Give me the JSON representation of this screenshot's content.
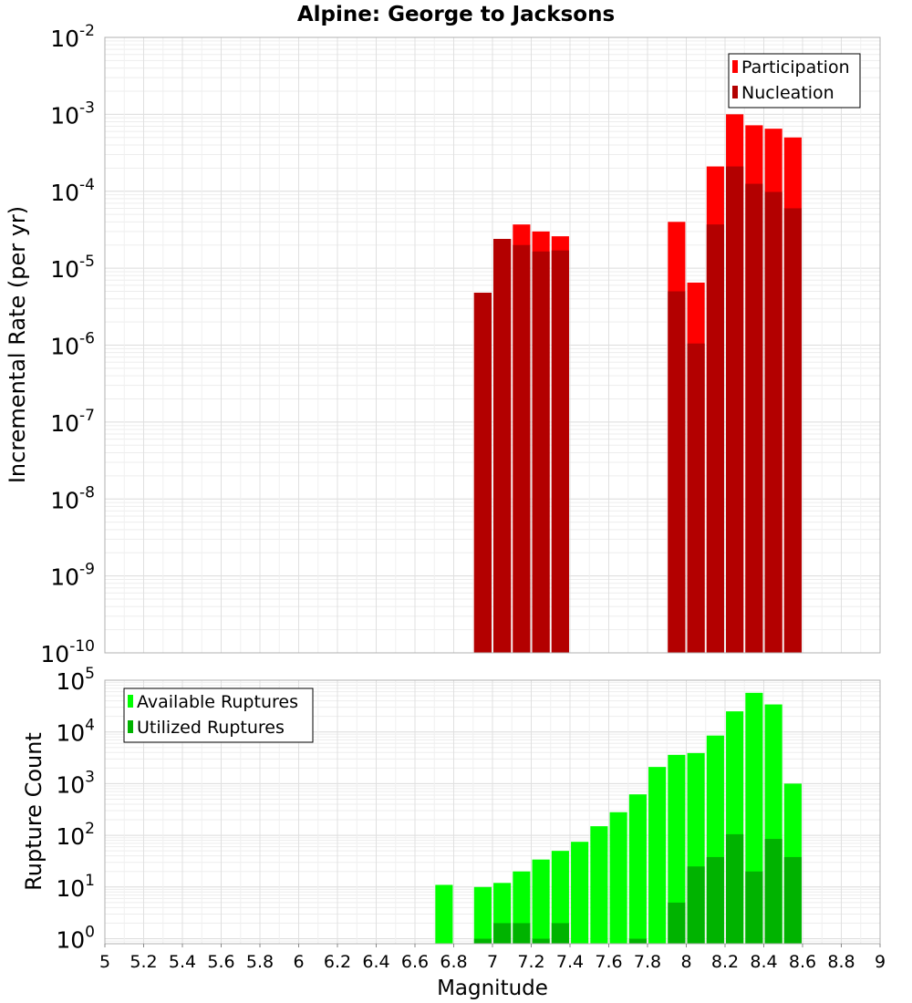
{
  "chart_data": [
    {
      "type": "bar",
      "title": "Alpine: George to Jacksons",
      "xlabel": "Magnitude",
      "ylabel": "Incremental Rate (per yr)",
      "yscale": "log",
      "xlim": [
        5,
        9
      ],
      "ylim": [
        1e-10,
        0.01
      ],
      "ytick_exponents": [
        -10,
        -9,
        -8,
        -7,
        -6,
        -5,
        -4,
        -3,
        -2
      ],
      "grid": true,
      "legend_position": "top-right",
      "bar_width": 0.09,
      "series": [
        {
          "name": "Participation",
          "color": "#ff0000",
          "x": [
            6.95,
            7.05,
            7.15,
            7.25,
            7.35,
            7.95,
            8.05,
            8.15,
            8.25,
            8.35,
            8.45,
            8.55
          ],
          "values": [
            4.8e-06,
            2.4e-05,
            3.7e-05,
            3e-05,
            2.6e-05,
            4e-05,
            6.5e-06,
            0.00021,
            0.001,
            0.00072,
            0.00065,
            0.0005
          ]
        },
        {
          "name": "Nucleation",
          "color": "#b30000",
          "x": [
            6.95,
            7.05,
            7.15,
            7.25,
            7.35,
            7.95,
            8.05,
            8.15,
            8.25,
            8.35,
            8.45,
            8.55
          ],
          "values": [
            4.8e-06,
            2.4e-05,
            2e-05,
            1.65e-05,
            1.7e-05,
            5e-06,
            1.05e-06,
            3.7e-05,
            0.00021,
            0.000125,
            9.8e-05,
            6e-05
          ]
        }
      ]
    },
    {
      "type": "bar",
      "title": "",
      "xlabel": "Magnitude",
      "ylabel": "Rupture Count",
      "yscale": "log",
      "xlim": [
        5,
        9
      ],
      "ylim": [
        0.8,
        100000.0
      ],
      "ytick_exponents": [
        0,
        1,
        2,
        3,
        4,
        5
      ],
      "xticks": [
        "5",
        "5.2",
        "5.4",
        "5.6",
        "5.8",
        "6",
        "6.2",
        "6.4",
        "6.6",
        "6.8",
        "7",
        "7.2",
        "7.4",
        "7.6",
        "7.8",
        "8",
        "8.2",
        "8.4",
        "8.6",
        "8.8",
        "9"
      ],
      "grid": true,
      "legend_position": "top-left",
      "bar_width": 0.09,
      "series": [
        {
          "name": "Available Ruptures",
          "color": "#00ff00",
          "x": [
            6.75,
            6.95,
            7.05,
            7.15,
            7.25,
            7.35,
            7.45,
            7.55,
            7.65,
            7.75,
            7.85,
            7.95,
            8.05,
            8.15,
            8.25,
            8.35,
            8.45,
            8.55
          ],
          "values": [
            11,
            10,
            12,
            20,
            34,
            50,
            75,
            150,
            280,
            620,
            2100,
            3600,
            3900,
            8500,
            25000,
            57000,
            34000,
            1000
          ]
        },
        {
          "name": "Utilized Ruptures",
          "color": "#00b300",
          "x": [
            6.95,
            7.05,
            7.15,
            7.25,
            7.35,
            7.75,
            7.95,
            8.05,
            8.15,
            8.25,
            8.35,
            8.45,
            8.55
          ],
          "values": [
            1,
            2,
            2,
            1,
            2,
            1,
            5,
            25,
            38,
            105,
            20,
            85,
            38
          ]
        }
      ]
    }
  ]
}
